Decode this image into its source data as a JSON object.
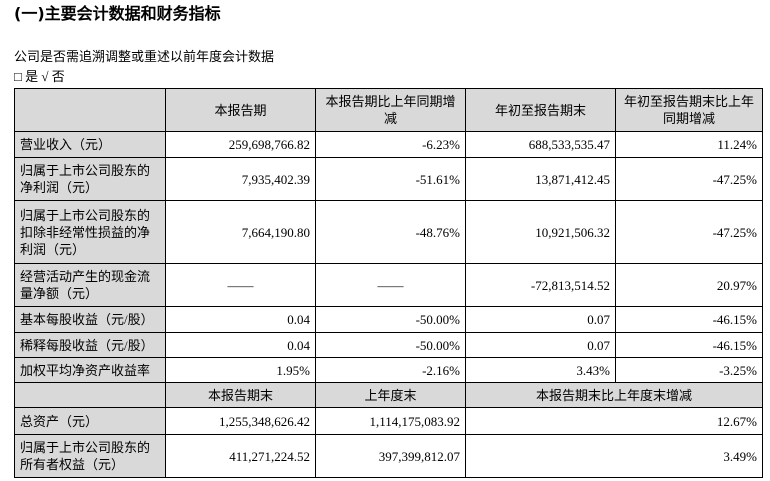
{
  "section_title": "(一)主要会计数据和财务指标",
  "restatement_question": "公司是否需追溯调整或重述以前年度会计数据",
  "restatement_choice": "□ 是 √ 否",
  "table": {
    "headers": [
      "本报告期",
      "本报告期比上年同期增减",
      "年初至报告期末",
      "年初至报告期末比上年同期增减"
    ],
    "rows": [
      [
        "营业收入（元）",
        "259,698,766.82",
        "-6.23%",
        "688,533,535.47",
        "11.24%"
      ],
      [
        "归属于上市公司股东的净利润（元）",
        "7,935,402.39",
        "-51.61%",
        "13,871,412.45",
        "-47.25%"
      ],
      [
        "归属于上市公司股东的扣除非经常性损益的净利润（元）",
        "7,664,190.80",
        "-48.76%",
        "10,921,506.32",
        "-47.25%"
      ],
      [
        "经营活动产生的现金流量净额（元）",
        "——",
        "——",
        "-72,813,514.52",
        "20.97%"
      ],
      [
        "基本每股收益（元/股）",
        "0.04",
        "-50.00%",
        "0.07",
        "-46.15%"
      ],
      [
        "稀释每股收益（元/股）",
        "0.04",
        "-50.00%",
        "0.07",
        "-46.15%"
      ],
      [
        "加权平均净资产收益率",
        "1.95%",
        "-2.16%",
        "3.43%",
        "-3.25%"
      ]
    ],
    "headers2": [
      "本报告期末",
      "上年度末",
      "本报告期末比上年度末增减"
    ],
    "rows2": [
      [
        "总资产（元）",
        "1,255,348,626.42",
        "1,114,175,083.92",
        "12.67%"
      ],
      [
        "归属于上市公司股东的所有者权益（元）",
        "411,271,224.52",
        "397,399,812.07",
        "3.49%"
      ]
    ]
  }
}
